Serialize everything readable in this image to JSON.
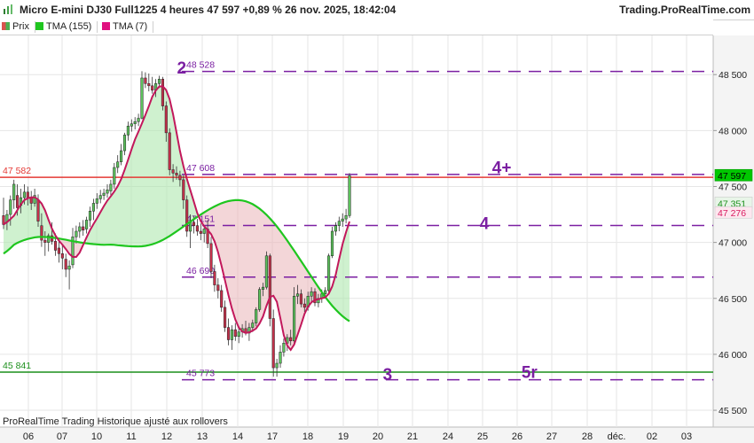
{
  "header": {
    "title": "Micro E-mini DJ30 Full1225 4 heures 47 597 +0,89 % 26 nov. 2025, 18:42:04",
    "brand": "Trading.ProRealTime.com"
  },
  "legend": [
    {
      "label": "Prix",
      "color": "#d9534f",
      "icon": "candle-icon"
    },
    {
      "label": "TMA (155)",
      "color": "#1fc61f",
      "icon": "square-icon"
    },
    {
      "label": "TMA (7)",
      "color": "#e0117f",
      "icon": "square-icon"
    }
  ],
  "footer": {
    "note": "ProRealTime Trading  Historique ajusté aux rollovers"
  },
  "colors": {
    "up": "#4caf50",
    "down": "#b00020",
    "tma155": "#1fc61f",
    "tma7": "#c2185b",
    "resistance": "#e53935",
    "support": "#1b8f1b",
    "dashed": "#7b1fa2",
    "fill_green": "#a8e6a8",
    "fill_red": "#eab4b8",
    "grid": "#e6e6e6",
    "price_tag": "#00c800"
  },
  "chart_data": {
    "type": "candlestick",
    "instrument": "Micro E-mini DJ30 Full1225",
    "timeframe": "4 heures",
    "y_axis": {
      "ticks": [
        "48 500",
        "48 000",
        "47 500",
        "47 000",
        "46 500",
        "46 000",
        "45 500"
      ],
      "tick_values": [
        48500,
        48000,
        47500,
        47000,
        46500,
        46000,
        45500
      ],
      "ylim": [
        45350,
        48850
      ]
    },
    "x_axis": {
      "ticks": [
        "06",
        "07",
        "10",
        "11",
        "12",
        "13",
        "14",
        "17",
        "18",
        "19",
        "20",
        "21",
        "24",
        "25",
        "26",
        "27",
        "28",
        "déc.",
        "02",
        "03"
      ]
    },
    "horizontal_lines": [
      {
        "label": "47 582",
        "value": 47582,
        "style": "solid",
        "color": "#e53935"
      },
      {
        "label": "45 841",
        "value": 45841,
        "style": "solid",
        "color": "#1b8f1b"
      },
      {
        "label": "48 528",
        "value": 48528,
        "style": "dashed"
      },
      {
        "label": "47 608",
        "value": 47608,
        "style": "dashed"
      },
      {
        "label": "47 151",
        "value": 47151,
        "style": "dashed"
      },
      {
        "label": "46 690",
        "value": 46690,
        "style": "dashed"
      },
      {
        "label": "45 773",
        "value": 45773,
        "style": "dashed"
      }
    ],
    "wave_labels": [
      {
        "text": "2",
        "t": 51.5,
        "y": 48510
      },
      {
        "text": "3",
        "t": 111,
        "y": 45770
      },
      {
        "text": "4",
        "t": 139,
        "y": 47120
      },
      {
        "text": "4+",
        "t": 144,
        "y": 47620
      },
      {
        "text": "5r",
        "t": 152,
        "y": 45790
      }
    ],
    "price_tags": [
      {
        "label": "47 597",
        "value": 47597,
        "kind": "price"
      },
      {
        "label": "47 351",
        "value": 47351,
        "kind": "tma155"
      },
      {
        "label": "47 276",
        "value": 47276,
        "kind": "tma7"
      }
    ],
    "candles": [
      [
        47240,
        47400,
        47120,
        47160
      ],
      [
        47180,
        47290,
        47110,
        47250
      ],
      [
        47250,
        47420,
        47150,
        47380
      ],
      [
        47380,
        47560,
        47300,
        47520
      ],
      [
        47420,
        47520,
        47240,
        47310
      ],
      [
        47330,
        47480,
        47260,
        47400
      ],
      [
        47400,
        47520,
        47340,
        47450
      ],
      [
        47450,
        47500,
        47330,
        47400
      ],
      [
        47400,
        47460,
        47290,
        47350
      ],
      [
        47350,
        47480,
        47320,
        47420
      ],
      [
        47380,
        47430,
        47140,
        47190
      ],
      [
        47150,
        47260,
        46960,
        47020
      ],
      [
        47020,
        47100,
        46880,
        47000
      ],
      [
        47000,
        47080,
        46920,
        47060
      ],
      [
        47060,
        47180,
        46980,
        47010
      ],
      [
        47010,
        47080,
        46880,
        46930
      ],
      [
        46950,
        47020,
        46820,
        46900
      ],
      [
        46900,
        46980,
        46760,
        46860
      ],
      [
        46850,
        46900,
        46690,
        46760
      ],
      [
        46760,
        46840,
        46580,
        46790
      ],
      [
        46800,
        47130,
        46770,
        47050
      ],
      [
        47050,
        47150,
        46990,
        47100
      ],
      [
        47100,
        47180,
        47040,
        47140
      ],
      [
        47140,
        47200,
        47060,
        47110
      ],
      [
        47120,
        47230,
        47080,
        47200
      ],
      [
        47200,
        47320,
        47140,
        47280
      ],
      [
        47280,
        47390,
        47200,
        47350
      ],
      [
        47350,
        47440,
        47300,
        47390
      ],
      [
        47390,
        47470,
        47350,
        47420
      ],
      [
        47420,
        47480,
        47380,
        47440
      ],
      [
        47440,
        47520,
        47400,
        47470
      ],
      [
        47460,
        47560,
        47420,
        47520
      ],
      [
        47520,
        47710,
        47480,
        47670
      ],
      [
        47670,
        47780,
        47620,
        47720
      ],
      [
        47720,
        47880,
        47690,
        47820
      ],
      [
        47820,
        47980,
        47780,
        47960
      ],
      [
        47960,
        48080,
        47910,
        48040
      ],
      [
        48040,
        48100,
        47990,
        48060
      ],
      [
        48060,
        48120,
        48010,
        48080
      ],
      [
        48080,
        48150,
        48040,
        48110
      ],
      [
        48110,
        48530,
        48100,
        48470
      ],
      [
        48470,
        48520,
        48380,
        48420
      ],
      [
        48420,
        48510,
        48350,
        48400
      ],
      [
        48400,
        48480,
        48330,
        48360
      ],
      [
        48360,
        48460,
        48300,
        48420
      ],
      [
        48420,
        48490,
        48380,
        48460
      ],
      [
        48460,
        48480,
        48180,
        48220
      ],
      [
        48220,
        48260,
        47900,
        47980
      ],
      [
        47980,
        48020,
        47600,
        47650
      ],
      [
        47650,
        47700,
        47540,
        47620
      ],
      [
        47620,
        47680,
        47560,
        47600
      ],
      [
        47600,
        47640,
        47500,
        47560
      ],
      [
        47560,
        47600,
        47300,
        47380
      ],
      [
        47380,
        47420,
        47050,
        47100
      ],
      [
        47100,
        47250,
        46950,
        47180
      ],
      [
        47180,
        47240,
        47080,
        47150
      ],
      [
        47150,
        47210,
        47060,
        47100
      ],
      [
        47100,
        47170,
        47020,
        47080
      ],
      [
        47080,
        47150,
        47000,
        47120
      ],
      [
        47120,
        47200,
        46950,
        46990
      ],
      [
        46990,
        47050,
        46680,
        46740
      ],
      [
        46740,
        46800,
        46560,
        46620
      ],
      [
        46620,
        46680,
        46500,
        46570
      ],
      [
        46570,
        46620,
        46380,
        46420
      ],
      [
        46420,
        46480,
        46200,
        46240
      ],
      [
        46240,
        46320,
        46080,
        46130
      ],
      [
        46130,
        46260,
        46040,
        46220
      ],
      [
        46220,
        46280,
        46120,
        46160
      ],
      [
        46160,
        46250,
        46100,
        46200
      ],
      [
        46200,
        46270,
        46150,
        46230
      ],
      [
        46230,
        46300,
        46170,
        46190
      ],
      [
        46190,
        46280,
        46120,
        46240
      ],
      [
        46240,
        46310,
        46200,
        46280
      ],
      [
        46280,
        46420,
        46250,
        46400
      ],
      [
        46400,
        46600,
        46380,
        46580
      ],
      [
        46580,
        46640,
        46520,
        46600
      ],
      [
        46600,
        46920,
        46580,
        46880
      ],
      [
        46880,
        46900,
        46250,
        46320
      ],
      [
        46320,
        46400,
        45800,
        45880
      ],
      [
        45880,
        45960,
        45800,
        45920
      ],
      [
        45920,
        46080,
        45880,
        46020
      ],
      [
        46020,
        46140,
        45980,
        46100
      ],
      [
        46100,
        46180,
        46030,
        46150
      ],
      [
        46150,
        46220,
        46080,
        46120
      ],
      [
        46120,
        46600,
        46100,
        46520
      ],
      [
        46520,
        46620,
        46450,
        46540
      ],
      [
        46540,
        46580,
        46420,
        46450
      ],
      [
        46450,
        46500,
        46380,
        46420
      ],
      [
        46420,
        46560,
        46390,
        46520
      ],
      [
        46520,
        46600,
        46470,
        46560
      ],
      [
        46560,
        46590,
        46430,
        46460
      ],
      [
        46460,
        46540,
        46420,
        46500
      ],
      [
        46500,
        46580,
        46460,
        46540
      ],
      [
        46540,
        46600,
        46500,
        46570
      ],
      [
        46570,
        46900,
        46550,
        46880
      ],
      [
        46880,
        47140,
        46860,
        47100
      ],
      [
        47100,
        47180,
        47060,
        47150
      ],
      [
        47150,
        47230,
        47100,
        47190
      ],
      [
        47190,
        47260,
        47140,
        47210
      ],
      [
        47210,
        47300,
        47170,
        47240
      ],
      [
        47240,
        47620,
        47220,
        47597
      ]
    ]
  }
}
